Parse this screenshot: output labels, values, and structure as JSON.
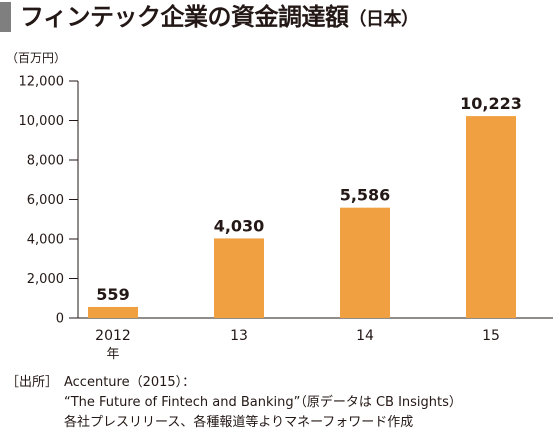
{
  "header": {
    "title": "フィンテック企業の資金調達額",
    "title_suffix": "（日本）"
  },
  "chart_data": {
    "type": "bar",
    "unit_label": "（百万円）",
    "categories": [
      "2012",
      "13",
      "14",
      "15"
    ],
    "category_sublabels": [
      "年",
      "",
      "",
      ""
    ],
    "values": [
      559,
      4030,
      5586,
      10223
    ],
    "value_labels": [
      "559",
      "4,030",
      "5,586",
      "10,223"
    ],
    "ylim": [
      0,
      12000
    ],
    "yticks": [
      0,
      2000,
      4000,
      6000,
      8000,
      10000,
      12000
    ],
    "ytick_labels": [
      "0",
      "2,000",
      "4,000",
      "6,000",
      "8,000",
      "10,000",
      "12,000"
    ],
    "bar_color": "#f0a040",
    "grid": false,
    "legend": "none"
  },
  "source": {
    "label": "［出所］",
    "line1": "Accenture（2015）：",
    "line2": "“The Future of Fintech and Banking”（原データは CB Insights）",
    "line3": "各社プレスリリース、各種報道等よりマネーフォワード作成"
  }
}
